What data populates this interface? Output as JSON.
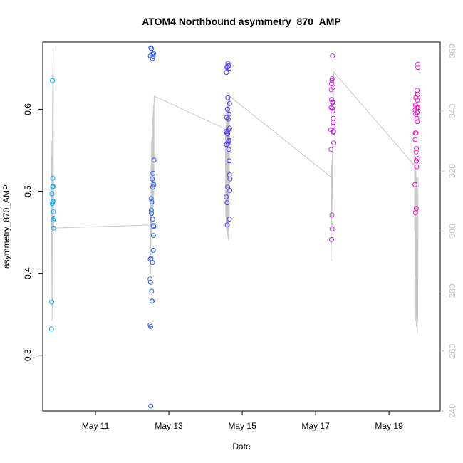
{
  "chart_data": {
    "type": "scatter",
    "title": "ATOM4 Northbound asymmetry_870_AMP",
    "xlabel": "Date",
    "ylabel": "asymmetry_870_AMP",
    "x_ticks": [
      "May 11",
      "May 13",
      "May 15",
      "May 17",
      "May 19"
    ],
    "y_ticks": [
      "0.3",
      "0.4",
      "0.5",
      "0.6"
    ],
    "y_right_ticks": [
      "240",
      "260",
      "280",
      "300",
      "320",
      "340",
      "360"
    ],
    "xlim": [
      "2016-05-09T13:30",
      "2016-05-20T09:30"
    ],
    "ylim": [
      0.232,
      0.682
    ],
    "y_right_lim": [
      240,
      363
    ],
    "grid": false,
    "legend": "none",
    "colors": {
      "right_axis": "#bfbfbf",
      "line": "#c8c8c8",
      "gradient": [
        "#00b0ff",
        "#1e6cff",
        "#3a3aff",
        "#8a2be2",
        "#e020e0",
        "#ff00cc"
      ]
    },
    "series": [
      {
        "values": [
          {
            "x": "2016-05-09T19:15",
            "y": 0.332
          },
          {
            "x": "2016-05-09T19:20",
            "y": 0.365
          },
          {
            "x": "2016-05-09T19:30",
            "y": 0.497
          },
          {
            "x": "2016-05-09T19:45",
            "y": 0.485
          },
          {
            "x": "2016-05-09T19:50",
            "y": 0.635
          },
          {
            "x": "2016-05-09T19:55",
            "y": 0.505
          },
          {
            "x": "2016-05-09T20:00",
            "y": 0.516
          },
          {
            "x": "2016-05-09T20:05",
            "y": 0.487
          },
          {
            "x": "2016-05-09T20:10",
            "y": 0.488
          },
          {
            "x": "2016-05-09T20:15",
            "y": 0.506
          },
          {
            "x": "2016-05-09T20:25",
            "y": 0.465
          },
          {
            "x": "2016-05-09T20:30",
            "y": 0.475
          },
          {
            "x": "2016-05-09T20:35",
            "y": 0.455
          },
          {
            "x": "2016-05-09T20:45",
            "y": 0.467
          },
          {
            "x": "2016-05-12T11:40",
            "y": 0.393
          },
          {
            "x": "2016-05-12T11:45",
            "y": 0.337
          },
          {
            "x": "2016-05-12T11:50",
            "y": 0.417
          },
          {
            "x": "2016-05-12T11:55",
            "y": 0.665
          },
          {
            "x": "2016-05-12T12:00",
            "y": 0.389
          },
          {
            "x": "2016-05-12T12:05",
            "y": 0.335
          },
          {
            "x": "2016-05-12T12:10",
            "y": 0.238
          },
          {
            "x": "2016-05-12T12:15",
            "y": 0.675
          },
          {
            "x": "2016-05-12T12:20",
            "y": 0.418
          },
          {
            "x": "2016-05-12T12:25",
            "y": 0.491
          },
          {
            "x": "2016-05-12T12:30",
            "y": 0.477
          },
          {
            "x": "2016-05-12T12:35",
            "y": 0.473
          },
          {
            "x": "2016-05-12T12:40",
            "y": 0.674
          },
          {
            "x": "2016-05-12T12:45",
            "y": 0.378
          },
          {
            "x": "2016-05-12T12:50",
            "y": 0.487
          },
          {
            "x": "2016-05-12T12:55",
            "y": 0.366
          },
          {
            "x": "2016-05-12T13:00",
            "y": 0.366
          },
          {
            "x": "2016-05-12T13:05",
            "y": 0.667
          },
          {
            "x": "2016-05-12T13:10",
            "y": 0.515
          },
          {
            "x": "2016-05-12T13:15",
            "y": 0.413
          },
          {
            "x": "2016-05-12T13:20",
            "y": 0.662
          },
          {
            "x": "2016-05-12T13:25",
            "y": 0.466
          },
          {
            "x": "2016-05-12T13:30",
            "y": 0.505
          },
          {
            "x": "2016-05-12T13:35",
            "y": 0.522
          },
          {
            "x": "2016-05-12T13:40",
            "y": 0.664
          },
          {
            "x": "2016-05-12T13:45",
            "y": 0.458
          },
          {
            "x": "2016-05-12T13:50",
            "y": 0.428
          },
          {
            "x": "2016-05-12T13:55",
            "y": 0.446
          },
          {
            "x": "2016-05-12T14:00",
            "y": 0.668
          },
          {
            "x": "2016-05-12T14:05",
            "y": 0.508
          },
          {
            "x": "2016-05-12T14:10",
            "y": 0.457
          },
          {
            "x": "2016-05-12T14:15",
            "y": 0.538
          },
          {
            "x": "2016-05-14T13:30",
            "y": 0.493
          },
          {
            "x": "2016-05-14T13:35",
            "y": 0.573
          },
          {
            "x": "2016-05-14T13:40",
            "y": 0.645
          },
          {
            "x": "2016-05-14T13:45",
            "y": 0.557
          },
          {
            "x": "2016-05-14T13:50",
            "y": 0.59
          },
          {
            "x": "2016-05-14T13:55",
            "y": 0.571
          },
          {
            "x": "2016-05-14T14:00",
            "y": 0.651
          },
          {
            "x": "2016-05-14T14:05",
            "y": 0.486
          },
          {
            "x": "2016-05-14T14:10",
            "y": 0.459
          },
          {
            "x": "2016-05-14T14:15",
            "y": 0.652
          },
          {
            "x": "2016-05-14T14:20",
            "y": 0.6
          },
          {
            "x": "2016-05-14T14:25",
            "y": 0.57
          },
          {
            "x": "2016-05-14T14:30",
            "y": 0.505
          },
          {
            "x": "2016-05-14T14:35",
            "y": 0.614
          },
          {
            "x": "2016-05-14T14:40",
            "y": 0.656
          },
          {
            "x": "2016-05-14T14:45",
            "y": 0.559
          },
          {
            "x": "2016-05-14T14:50",
            "y": 0.588
          },
          {
            "x": "2016-05-14T14:55",
            "y": 0.575
          },
          {
            "x": "2016-05-14T15:00",
            "y": 0.653
          },
          {
            "x": "2016-05-14T15:05",
            "y": 0.561
          },
          {
            "x": "2016-05-14T15:10",
            "y": 0.551
          },
          {
            "x": "2016-05-14T15:15",
            "y": 0.594
          },
          {
            "x": "2016-05-14T15:20",
            "y": 0.562
          },
          {
            "x": "2016-05-14T15:25",
            "y": 0.537
          },
          {
            "x": "2016-05-14T15:30",
            "y": 0.65
          },
          {
            "x": "2016-05-14T15:35",
            "y": 0.466
          },
          {
            "x": "2016-05-14T15:40",
            "y": 0.52
          },
          {
            "x": "2016-05-14T15:45",
            "y": 0.607
          },
          {
            "x": "2016-05-14T15:50",
            "y": 0.577
          },
          {
            "x": "2016-05-14T15:55",
            "y": 0.501
          },
          {
            "x": "2016-05-14T16:00",
            "y": 0.515
          },
          {
            "x": "2016-05-17T10:00",
            "y": 0.575
          },
          {
            "x": "2016-05-17T10:05",
            "y": 0.551
          },
          {
            "x": "2016-05-17T10:10",
            "y": 0.624
          },
          {
            "x": "2016-05-17T10:15",
            "y": 0.602
          },
          {
            "x": "2016-05-17T10:20",
            "y": 0.631
          },
          {
            "x": "2016-05-17T10:25",
            "y": 0.612
          },
          {
            "x": "2016-05-17T10:30",
            "y": 0.441
          },
          {
            "x": "2016-05-17T10:35",
            "y": 0.635
          },
          {
            "x": "2016-05-17T10:40",
            "y": 0.471
          },
          {
            "x": "2016-05-17T10:45",
            "y": 0.454
          },
          {
            "x": "2016-05-17T10:50",
            "y": 0.637
          },
          {
            "x": "2016-05-17T10:55",
            "y": 0.601
          },
          {
            "x": "2016-05-17T11:00",
            "y": 0.665
          },
          {
            "x": "2016-05-17T11:05",
            "y": 0.608
          },
          {
            "x": "2016-05-17T11:10",
            "y": 0.609
          },
          {
            "x": "2016-05-17T11:15",
            "y": 0.598
          },
          {
            "x": "2016-05-17T11:20",
            "y": 0.579
          },
          {
            "x": "2016-05-17T11:25",
            "y": 0.627
          },
          {
            "x": "2016-05-17T11:30",
            "y": 0.584
          },
          {
            "x": "2016-05-17T11:35",
            "y": 0.589
          },
          {
            "x": "2016-05-17T11:40",
            "y": 0.572
          },
          {
            "x": "2016-05-17T11:45",
            "y": 0.573
          },
          {
            "x": "2016-05-17T11:50",
            "y": 0.559
          },
          {
            "x": "2016-05-19T17:00",
            "y": 0.508
          },
          {
            "x": "2016-05-19T17:05",
            "y": 0.599
          },
          {
            "x": "2016-05-19T17:10",
            "y": 0.563
          },
          {
            "x": "2016-05-19T17:15",
            "y": 0.571
          },
          {
            "x": "2016-05-19T17:20",
            "y": 0.474
          },
          {
            "x": "2016-05-19T17:25",
            "y": 0.605
          },
          {
            "x": "2016-05-19T17:30",
            "y": 0.594
          },
          {
            "x": "2016-05-19T17:35",
            "y": 0.614
          },
          {
            "x": "2016-05-19T17:40",
            "y": 0.571
          },
          {
            "x": "2016-05-19T17:45",
            "y": 0.548
          },
          {
            "x": "2016-05-19T17:50",
            "y": 0.479
          },
          {
            "x": "2016-05-19T17:55",
            "y": 0.537
          },
          {
            "x": "2016-05-19T18:00",
            "y": 0.552
          },
          {
            "x": "2016-05-19T18:05",
            "y": 0.53
          },
          {
            "x": "2016-05-19T18:10",
            "y": 0.589
          },
          {
            "x": "2016-05-19T18:15",
            "y": 0.602
          },
          {
            "x": "2016-05-19T18:20",
            "y": 0.623
          },
          {
            "x": "2016-05-19T18:25",
            "y": 0.596
          },
          {
            "x": "2016-05-19T18:30",
            "y": 0.585
          },
          {
            "x": "2016-05-19T18:35",
            "y": 0.611
          },
          {
            "x": "2016-05-19T18:40",
            "y": 0.54
          },
          {
            "x": "2016-05-19T18:45",
            "y": 0.618
          },
          {
            "x": "2016-05-19T18:50",
            "y": 0.651
          },
          {
            "x": "2016-05-19T18:55",
            "y": 0.655
          },
          {
            "x": "2016-05-19T19:00",
            "y": 0.602
          }
        ]
      },
      {
        "axis": "right",
        "values": [
          {
            "x": "2016-05-09T19:00",
            "y": 275
          },
          {
            "x": "2016-05-09T19:10",
            "y": 330
          },
          {
            "x": "2016-05-09T19:20",
            "y": 290
          },
          {
            "x": "2016-05-09T19:30",
            "y": 325
          },
          {
            "x": "2016-05-09T19:40",
            "y": 270
          },
          {
            "x": "2016-05-09T19:50",
            "y": 335
          },
          {
            "x": "2016-05-09T20:00",
            "y": 350
          },
          {
            "x": "2016-05-09T20:10",
            "y": 356
          },
          {
            "x": "2016-05-09T20:20",
            "y": 361
          },
          {
            "x": "2016-05-09T20:30",
            "y": 305
          },
          {
            "x": "2016-05-09T20:45",
            "y": 301
          },
          {
            "x": "2016-05-12T11:30",
            "y": 302
          },
          {
            "x": "2016-05-12T11:40",
            "y": 300
          },
          {
            "x": "2016-05-12T11:50",
            "y": 292
          },
          {
            "x": "2016-05-12T12:00",
            "y": 310
          },
          {
            "x": "2016-05-12T12:10",
            "y": 286
          },
          {
            "x": "2016-05-12T12:20",
            "y": 322
          },
          {
            "x": "2016-05-12T12:30",
            "y": 298
          },
          {
            "x": "2016-05-12T12:40",
            "y": 330
          },
          {
            "x": "2016-05-12T12:50",
            "y": 302
          },
          {
            "x": "2016-05-12T13:00",
            "y": 335
          },
          {
            "x": "2016-05-12T13:10",
            "y": 304
          },
          {
            "x": "2016-05-12T13:20",
            "y": 338
          },
          {
            "x": "2016-05-12T13:30",
            "y": 306
          },
          {
            "x": "2016-05-12T13:40",
            "y": 340
          },
          {
            "x": "2016-05-12T13:50",
            "y": 308
          },
          {
            "x": "2016-05-12T14:00",
            "y": 342
          },
          {
            "x": "2016-05-12T14:10",
            "y": 312
          },
          {
            "x": "2016-05-12T14:20",
            "y": 345
          },
          {
            "x": "2016-05-14T13:00",
            "y": 334
          },
          {
            "x": "2016-05-14T13:10",
            "y": 305
          },
          {
            "x": "2016-05-14T13:20",
            "y": 338
          },
          {
            "x": "2016-05-14T13:30",
            "y": 302
          },
          {
            "x": "2016-05-14T13:40",
            "y": 340
          },
          {
            "x": "2016-05-14T13:50",
            "y": 300
          },
          {
            "x": "2016-05-14T14:00",
            "y": 342
          },
          {
            "x": "2016-05-14T14:10",
            "y": 299
          },
          {
            "x": "2016-05-14T14:20",
            "y": 343
          },
          {
            "x": "2016-05-14T14:30",
            "y": 298
          },
          {
            "x": "2016-05-14T14:40",
            "y": 344
          },
          {
            "x": "2016-05-14T14:50",
            "y": 297
          },
          {
            "x": "2016-05-14T15:00",
            "y": 345
          },
          {
            "x": "2016-05-14T15:10",
            "y": 300
          },
          {
            "x": "2016-05-14T15:20",
            "y": 346
          },
          {
            "x": "2016-05-14T15:30",
            "y": 305
          },
          {
            "x": "2016-05-14T15:40",
            "y": 345
          },
          {
            "x": "2016-05-17T10:00",
            "y": 318
          },
          {
            "x": "2016-05-17T10:10",
            "y": 290
          },
          {
            "x": "2016-05-17T10:20",
            "y": 322
          },
          {
            "x": "2016-05-17T10:30",
            "y": 300
          },
          {
            "x": "2016-05-17T10:40",
            "y": 324
          },
          {
            "x": "2016-05-17T10:50",
            "y": 312
          },
          {
            "x": "2016-05-17T11:00",
            "y": 330
          },
          {
            "x": "2016-05-17T11:10",
            "y": 300
          },
          {
            "x": "2016-05-17T11:20",
            "y": 335
          },
          {
            "x": "2016-05-17T11:30",
            "y": 340
          },
          {
            "x": "2016-05-17T11:40",
            "y": 349
          },
          {
            "x": "2016-05-17T11:50",
            "y": 353
          },
          {
            "x": "2016-05-19T16:30",
            "y": 322
          },
          {
            "x": "2016-05-19T16:40",
            "y": 326
          },
          {
            "x": "2016-05-19T16:50",
            "y": 300
          },
          {
            "x": "2016-05-19T17:00",
            "y": 325
          },
          {
            "x": "2016-05-19T17:10",
            "y": 285
          },
          {
            "x": "2016-05-19T17:20",
            "y": 322
          },
          {
            "x": "2016-05-19T17:30",
            "y": 270
          },
          {
            "x": "2016-05-19T17:40",
            "y": 320
          },
          {
            "x": "2016-05-19T17:50",
            "y": 268
          },
          {
            "x": "2016-05-19T18:00",
            "y": 318
          },
          {
            "x": "2016-05-19T18:10",
            "y": 272
          },
          {
            "x": "2016-05-19T18:20",
            "y": 315
          },
          {
            "x": "2016-05-19T18:30",
            "y": 266
          },
          {
            "x": "2016-05-19T18:40",
            "y": 312
          },
          {
            "x": "2016-05-19T18:50",
            "y": 270
          },
          {
            "x": "2016-05-19T19:00",
            "y": 318
          }
        ]
      }
    ]
  }
}
